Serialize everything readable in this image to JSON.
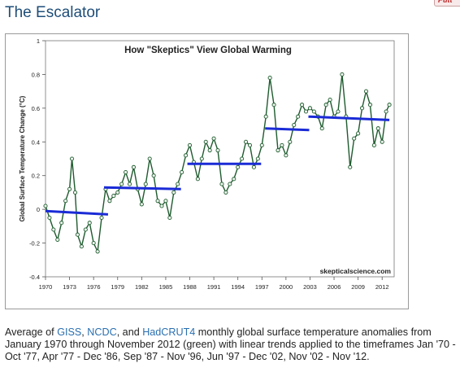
{
  "page": {
    "title": "The Escalator",
    "corner_button": "Putt"
  },
  "caption": {
    "prefix": "Average of ",
    "link1": "GISS",
    "sep1": ", ",
    "link2": "NCDC",
    "sep2": ", and ",
    "link3": "HadCRUT4",
    "suffix": " monthly global surface temperature anomalies from January 1970 through November 2012 (green) with linear trends applied to the timeframes Jan '70 - Oct '77, Apr '77 - Dec '86, Sep '87 - Nov '96, Jun '97 - Dec '02, Nov '02 - Nov '12."
  },
  "chart_data": {
    "type": "line",
    "title": "How \"Skeptics\" View Global Warming",
    "ylabel": "Global Surface Temperature Change (°C)",
    "xlabel": "",
    "watermark": "skepticalscience.com",
    "xlim": [
      1970,
      2013.5
    ],
    "ylim": [
      -0.4,
      1.0
    ],
    "x_ticks": [
      1970,
      1973,
      1976,
      1979,
      1982,
      1985,
      1988,
      1991,
      1994,
      1997,
      2000,
      2003,
      2006,
      2009,
      2012
    ],
    "y_ticks": [
      -0.4,
      -0.2,
      0,
      0.2,
      0.4,
      0.6,
      0.8,
      1
    ],
    "y_tick_labels": [
      "-0.4",
      "-0.2",
      "0",
      "0.2",
      "0.4",
      "0.6",
      "0.8",
      "1"
    ],
    "grid": false,
    "colors": {
      "data": "#1e5b2e",
      "marker_face": "#eef3ee",
      "trend": "#1a2bd6"
    },
    "series": [
      {
        "values": [
          [
            1970.0,
            0.02
          ],
          [
            1970.5,
            -0.05
          ],
          [
            1971.0,
            -0.12
          ],
          [
            1971.5,
            -0.18
          ],
          [
            1972.0,
            -0.08
          ],
          [
            1972.5,
            0.05
          ],
          [
            1973.0,
            0.12
          ],
          [
            1973.3,
            0.3
          ],
          [
            1973.7,
            0.1
          ],
          [
            1974.0,
            -0.15
          ],
          [
            1974.5,
            -0.22
          ],
          [
            1975.0,
            -0.12
          ],
          [
            1975.5,
            -0.08
          ],
          [
            1976.0,
            -0.2
          ],
          [
            1976.5,
            -0.25
          ],
          [
            1977.0,
            -0.05
          ],
          [
            1977.5,
            0.12
          ],
          [
            1978.0,
            0.05
          ],
          [
            1978.5,
            0.08
          ],
          [
            1979.0,
            0.1
          ],
          [
            1979.5,
            0.15
          ],
          [
            1980.0,
            0.22
          ],
          [
            1980.5,
            0.15
          ],
          [
            1981.0,
            0.25
          ],
          [
            1981.5,
            0.12
          ],
          [
            1982.0,
            0.03
          ],
          [
            1982.5,
            0.15
          ],
          [
            1983.0,
            0.3
          ],
          [
            1983.5,
            0.2
          ],
          [
            1984.0,
            0.05
          ],
          [
            1984.5,
            0.02
          ],
          [
            1985.0,
            0.05
          ],
          [
            1985.5,
            -0.05
          ],
          [
            1986.0,
            0.1
          ],
          [
            1986.5,
            0.15
          ],
          [
            1987.0,
            0.22
          ],
          [
            1987.5,
            0.32
          ],
          [
            1988.0,
            0.38
          ],
          [
            1988.5,
            0.28
          ],
          [
            1989.0,
            0.18
          ],
          [
            1989.5,
            0.3
          ],
          [
            1990.0,
            0.4
          ],
          [
            1990.5,
            0.35
          ],
          [
            1991.0,
            0.42
          ],
          [
            1991.5,
            0.35
          ],
          [
            1992.0,
            0.15
          ],
          [
            1992.5,
            0.1
          ],
          [
            1993.0,
            0.15
          ],
          [
            1993.5,
            0.18
          ],
          [
            1994.0,
            0.25
          ],
          [
            1994.5,
            0.3
          ],
          [
            1995.0,
            0.4
          ],
          [
            1995.5,
            0.38
          ],
          [
            1996.0,
            0.25
          ],
          [
            1996.5,
            0.3
          ],
          [
            1997.0,
            0.38
          ],
          [
            1997.5,
            0.55
          ],
          [
            1998.0,
            0.78
          ],
          [
            1998.5,
            0.62
          ],
          [
            1999.0,
            0.35
          ],
          [
            1999.5,
            0.38
          ],
          [
            2000.0,
            0.32
          ],
          [
            2000.5,
            0.4
          ],
          [
            2001.0,
            0.5
          ],
          [
            2001.5,
            0.55
          ],
          [
            2002.0,
            0.62
          ],
          [
            2002.5,
            0.58
          ],
          [
            2003.0,
            0.6
          ],
          [
            2003.5,
            0.58
          ],
          [
            2004.0,
            0.55
          ],
          [
            2004.5,
            0.48
          ],
          [
            2005.0,
            0.62
          ],
          [
            2005.5,
            0.65
          ],
          [
            2006.0,
            0.55
          ],
          [
            2006.5,
            0.58
          ],
          [
            2007.0,
            0.8
          ],
          [
            2007.5,
            0.55
          ],
          [
            2008.0,
            0.25
          ],
          [
            2008.5,
            0.42
          ],
          [
            2009.0,
            0.45
          ],
          [
            2009.5,
            0.6
          ],
          [
            2010.0,
            0.7
          ],
          [
            2010.5,
            0.62
          ],
          [
            2011.0,
            0.38
          ],
          [
            2011.5,
            0.48
          ],
          [
            2012.0,
            0.4
          ],
          [
            2012.5,
            0.58
          ],
          [
            2012.9,
            0.62
          ]
        ]
      }
    ],
    "trends": [
      {
        "x": [
          1970.0,
          1977.8
        ],
        "y": [
          -0.01,
          -0.03
        ]
      },
      {
        "x": [
          1977.3,
          1986.9
        ],
        "y": [
          0.13,
          0.12
        ]
      },
      {
        "x": [
          1987.7,
          1996.9
        ],
        "y": [
          0.27,
          0.27
        ]
      },
      {
        "x": [
          1997.4,
          2002.9
        ],
        "y": [
          0.48,
          0.47
        ]
      },
      {
        "x": [
          2002.8,
          2012.9
        ],
        "y": [
          0.55,
          0.53
        ]
      }
    ]
  }
}
